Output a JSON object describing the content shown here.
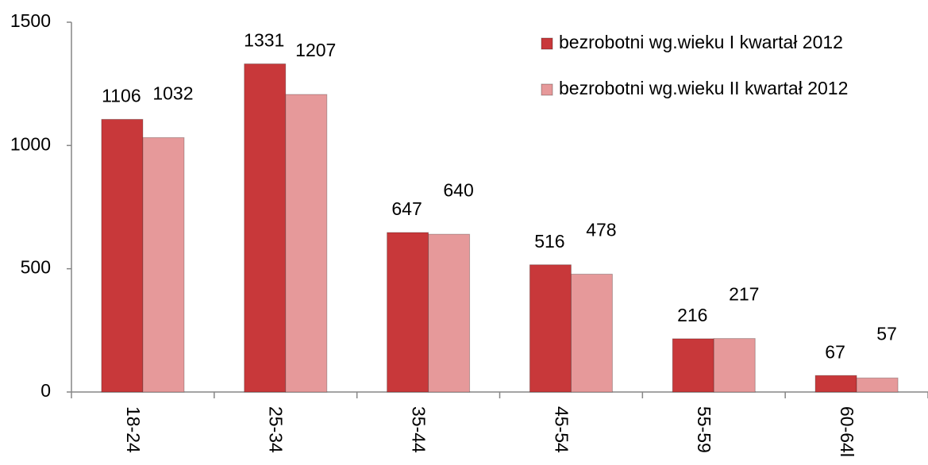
{
  "chart_data": {
    "type": "bar",
    "categories": [
      "18-24",
      "25-34",
      "35-44",
      "45-54",
      "55-59",
      "60-64l"
    ],
    "series": [
      {
        "name": "bezrobotni wg.wieku I kwartał 2012",
        "color": "#c8383a",
        "values": [
          1106,
          1331,
          647,
          516,
          216,
          67
        ]
      },
      {
        "name": "bezrobotni wg.wieku II kwartał 2012",
        "color": "#e6999a",
        "values": [
          1032,
          1207,
          640,
          478,
          217,
          57
        ]
      }
    ],
    "ylim": [
      0,
      1500
    ],
    "yticks": [
      0,
      500,
      1000,
      1500
    ],
    "grid": false,
    "legend": "top-right"
  }
}
